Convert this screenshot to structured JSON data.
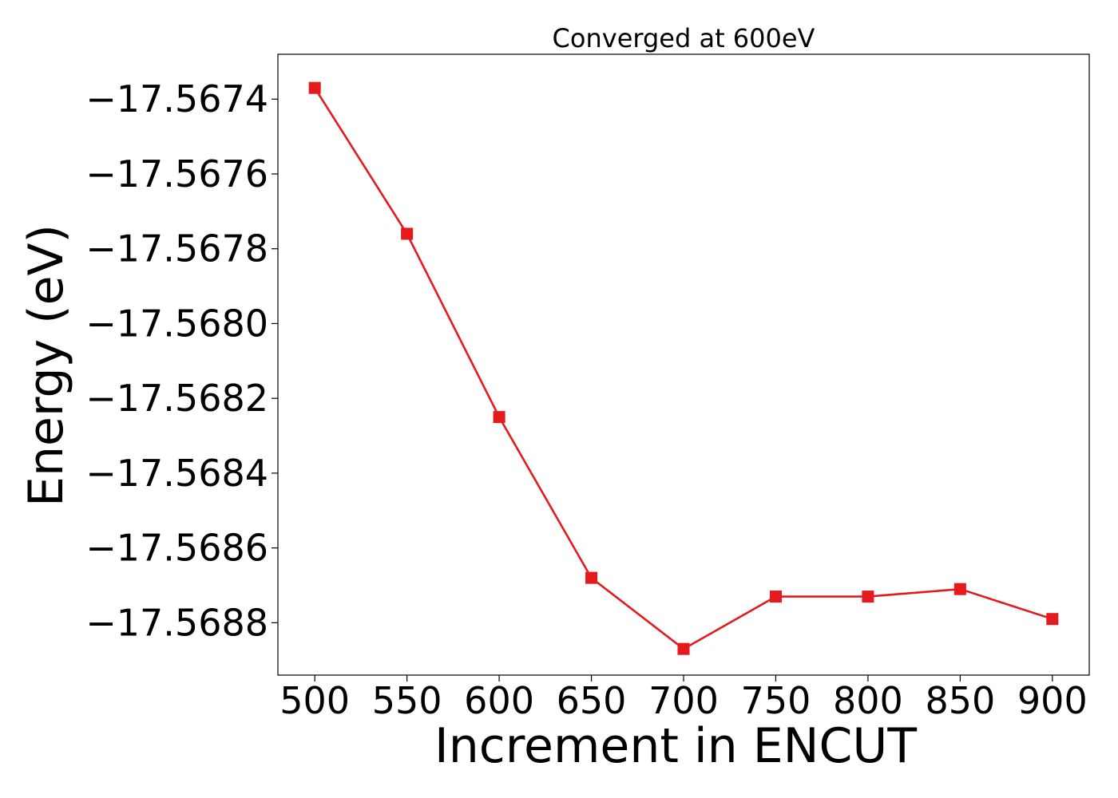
{
  "chart_data": {
    "type": "line",
    "title": "Converged at 600eV",
    "xlabel": "Increment in ENCUT",
    "ylabel": "Energy (eV)",
    "x": [
      500,
      550,
      600,
      650,
      700,
      750,
      800,
      850,
      900
    ],
    "series": [
      {
        "values": [
          -17.56737,
          -17.56776,
          -17.56825,
          -17.56868,
          -17.56887,
          -17.56873,
          -17.56873,
          -17.56871,
          -17.56879
        ],
        "color": "#e41a1c",
        "marker": "square"
      }
    ],
    "xticks": [
      500,
      550,
      600,
      650,
      700,
      750,
      800,
      850,
      900
    ],
    "xtick_labels": [
      "500",
      "550",
      "600",
      "650",
      "700",
      "750",
      "800",
      "850",
      "900"
    ],
    "yticks": [
      -17.5674,
      -17.5676,
      -17.5678,
      -17.568,
      -17.5682,
      -17.5684,
      -17.5686,
      -17.5688
    ],
    "ytick_labels": [
      "−17.5674",
      "−17.5676",
      "−17.5678",
      "−17.5680",
      "−17.5682",
      "−17.5684",
      "−17.5686",
      "−17.5688"
    ],
    "xlim": [
      480,
      920
    ],
    "ylim": [
      -17.56894,
      -17.56728
    ],
    "grid": false,
    "legend": "none"
  }
}
